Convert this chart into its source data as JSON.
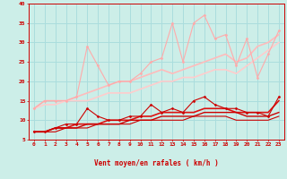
{
  "background_color": "#cceee8",
  "grid_color": "#aadddd",
  "xlabel": "Vent moyen/en rafales ( km/h )",
  "xlabel_color": "#cc0000",
  "tick_color": "#cc0000",
  "xlim": [
    -0.5,
    23.5
  ],
  "ylim": [
    5,
    40
  ],
  "yticks": [
    5,
    10,
    15,
    20,
    25,
    30,
    35,
    40
  ],
  "xticks": [
    0,
    1,
    2,
    3,
    4,
    5,
    6,
    7,
    8,
    9,
    10,
    11,
    12,
    13,
    14,
    15,
    16,
    17,
    18,
    19,
    20,
    21,
    22,
    23
  ],
  "series": [
    {
      "x": [
        0,
        1,
        2,
        3,
        4,
        5,
        6,
        7,
        8,
        9,
        10,
        11,
        12,
        13,
        14,
        15,
        16,
        17,
        18,
        19,
        20,
        21,
        22,
        23
      ],
      "y": [
        13,
        15,
        15,
        15,
        16,
        29,
        24,
        19,
        20,
        20,
        22,
        25,
        26,
        35,
        25,
        35,
        37,
        31,
        32,
        24,
        31,
        21,
        27,
        33
      ],
      "color": "#ffaaaa",
      "lw": 0.8,
      "marker": true
    },
    {
      "x": [
        0,
        1,
        2,
        3,
        4,
        5,
        6,
        7,
        8,
        9,
        10,
        11,
        12,
        13,
        14,
        15,
        16,
        17,
        18,
        19,
        20,
        21,
        22,
        23
      ],
      "y": [
        13,
        15,
        15,
        15,
        16,
        17,
        18,
        19,
        20,
        20,
        21,
        22,
        23,
        22,
        23,
        24,
        25,
        26,
        27,
        25,
        26,
        29,
        30,
        32
      ],
      "color": "#ffbbbb",
      "lw": 1.2,
      "marker": false
    },
    {
      "x": [
        0,
        1,
        2,
        3,
        4,
        5,
        6,
        7,
        8,
        9,
        10,
        11,
        12,
        13,
        14,
        15,
        16,
        17,
        18,
        19,
        20,
        21,
        22,
        23
      ],
      "y": [
        13,
        14,
        14,
        15,
        15,
        15,
        16,
        17,
        17,
        17,
        18,
        19,
        20,
        20,
        21,
        21,
        22,
        23,
        23,
        22,
        24,
        26,
        28,
        30
      ],
      "color": "#ffcccc",
      "lw": 1.2,
      "marker": false
    },
    {
      "x": [
        0,
        1,
        2,
        3,
        4,
        5,
        6,
        7,
        8,
        9,
        10,
        11,
        12,
        13,
        14,
        15,
        16,
        17,
        18,
        19,
        20,
        21,
        22,
        23
      ],
      "y": [
        7,
        7,
        8,
        9,
        9,
        13,
        11,
        10,
        10,
        11,
        11,
        14,
        12,
        13,
        12,
        15,
        16,
        14,
        13,
        13,
        12,
        12,
        11,
        16
      ],
      "color": "#cc0000",
      "lw": 0.8,
      "marker": true
    },
    {
      "x": [
        0,
        1,
        2,
        3,
        4,
        5,
        6,
        7,
        8,
        9,
        10,
        11,
        12,
        13,
        14,
        15,
        16,
        17,
        18,
        19,
        20,
        21,
        22,
        23
      ],
      "y": [
        7,
        7,
        8,
        8,
        9,
        9,
        9,
        10,
        10,
        10,
        11,
        11,
        12,
        12,
        12,
        12,
        13,
        13,
        13,
        12,
        12,
        12,
        12,
        15
      ],
      "color": "#dd1111",
      "lw": 1.2,
      "marker": false
    },
    {
      "x": [
        0,
        1,
        2,
        3,
        4,
        5,
        6,
        7,
        8,
        9,
        10,
        11,
        12,
        13,
        14,
        15,
        16,
        17,
        18,
        19,
        20,
        21,
        22,
        23
      ],
      "y": [
        7,
        7,
        8,
        8,
        8,
        9,
        9,
        9,
        9,
        10,
        10,
        10,
        11,
        11,
        11,
        11,
        12,
        12,
        12,
        12,
        11,
        11,
        11,
        12
      ],
      "color": "#cc0000",
      "lw": 1.0,
      "marker": false
    },
    {
      "x": [
        0,
        1,
        2,
        3,
        4,
        5,
        6,
        7,
        8,
        9,
        10,
        11,
        12,
        13,
        14,
        15,
        16,
        17,
        18,
        19,
        20,
        21,
        22,
        23
      ],
      "y": [
        7,
        7,
        7,
        8,
        8,
        8,
        9,
        9,
        9,
        9,
        10,
        10,
        10,
        10,
        10,
        11,
        11,
        11,
        11,
        10,
        10,
        10,
        10,
        11
      ],
      "color": "#cc0000",
      "lw": 0.8,
      "marker": false
    }
  ],
  "arrow_color": "#cc0000",
  "arrow_symbols": [
    "↙",
    "↗",
    "↙",
    "↑",
    "↙",
    "↙",
    "↙",
    "↖",
    "↙",
    "↑",
    "↑",
    "↑",
    "↗",
    "↑",
    "↗",
    "↙",
    "↑",
    "↙",
    "↑",
    "↗",
    "↗",
    "↑",
    "↗",
    "↑"
  ]
}
